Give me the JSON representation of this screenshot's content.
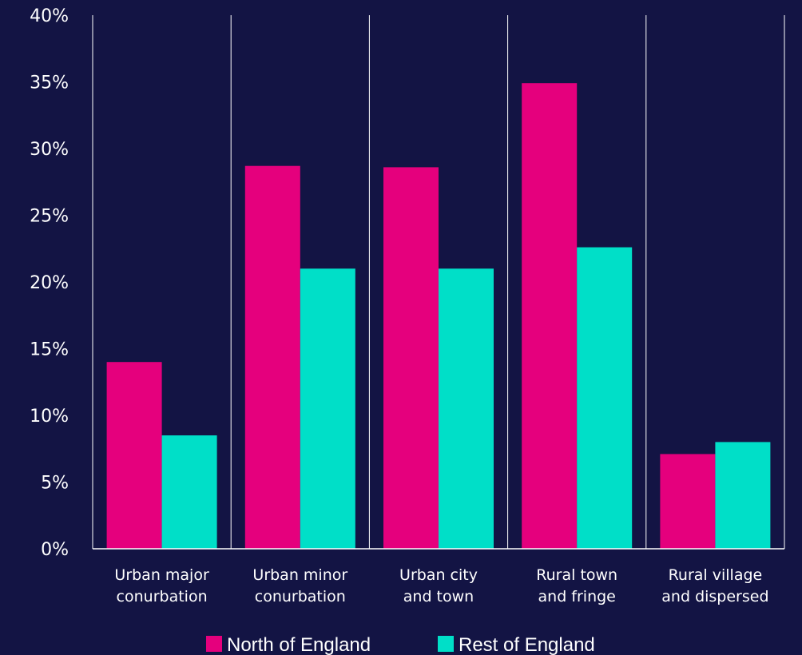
{
  "chart_data": {
    "type": "bar",
    "categories": [
      [
        "Urban major",
        "conurbation"
      ],
      [
        "Urban minor",
        "conurbation"
      ],
      [
        "Urban city",
        "and town"
      ],
      [
        "Rural town",
        "and fringe"
      ],
      [
        "Rural village",
        "and dispersed"
      ]
    ],
    "series": [
      {
        "name": "North of England",
        "color": "#e5007d",
        "values": [
          14.0,
          28.7,
          28.6,
          34.9,
          7.1
        ]
      },
      {
        "name": "Rest of England",
        "color": "#00dfc8",
        "values": [
          8.5,
          21.0,
          21.0,
          22.6,
          8.0
        ]
      }
    ],
    "ylim": [
      0,
      40
    ],
    "yticks": [
      0,
      5,
      10,
      15,
      20,
      25,
      30,
      35,
      40
    ],
    "ytick_labels": [
      "0%",
      "5%",
      "10%",
      "15%",
      "20%",
      "25%",
      "30%",
      "35%",
      "40%"
    ],
    "grid": false,
    "category_separators": true,
    "legend_position": "bottom-center",
    "background": "#131444",
    "axis_color": "#ffffff"
  }
}
